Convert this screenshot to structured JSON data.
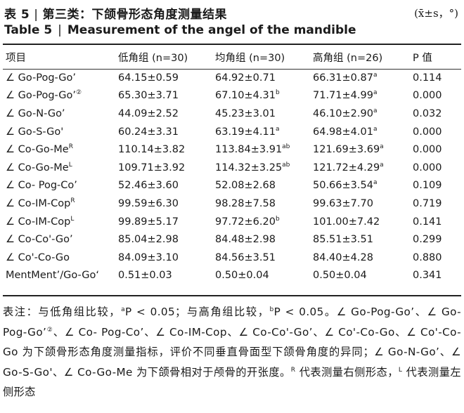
{
  "title": {
    "zh_label": "表 5",
    "zh_text": "第三类：下颌骨形态角度测量结果",
    "separator": "|",
    "unit": "(x̄±s，°)",
    "en_label": "Table 5",
    "en_text": "Measurement of the angel of the mandible"
  },
  "table": {
    "headers": [
      "项目",
      "低角组 (n=30)",
      "均角组 (n=30)",
      "高角组 (n=26)",
      "P 值"
    ],
    "rows": [
      {
        "item": "∠ Go-Pog-Go’",
        "sup": "",
        "low": "64.15±0.59",
        "low_sup": "",
        "mid": "64.92±0.71",
        "mid_sup": "",
        "high": "66.31±0.87",
        "high_sup": "a",
        "p": "0.114"
      },
      {
        "item": "∠ Go-Pog-Go’",
        "sup": "②",
        "low": "65.30±3.71",
        "low_sup": "",
        "mid": "67.10±4.31",
        "mid_sup": "b",
        "high": "71.71±4.99",
        "high_sup": "a",
        "p": "0.000"
      },
      {
        "item": "∠ Go-N-Go’",
        "sup": "",
        "low": "44.09±2.52",
        "low_sup": "",
        "mid": "45.23±3.01",
        "mid_sup": "",
        "high": "46.10±2.90",
        "high_sup": "a",
        "p": "0.032"
      },
      {
        "item": "∠ Go-S-Go'",
        "sup": "",
        "low": "60.24±3.31",
        "low_sup": "",
        "mid": "63.19±4.11",
        "mid_sup": "a",
        "high": "64.98±4.01",
        "high_sup": "a",
        "p": "0.000"
      },
      {
        "item": "∠ Co-Go-Me",
        "sup": "R",
        "low": "110.14±3.82",
        "low_sup": "",
        "mid": "113.84±3.91",
        "mid_sup": "ab",
        "high": "121.69±3.69",
        "high_sup": "a",
        "p": "0.000"
      },
      {
        "item": "∠ Co-Go-Me",
        "sup": "L",
        "low": "109.71±3.92",
        "low_sup": "",
        "mid": "114.32±3.25",
        "mid_sup": "ab",
        "high": "121.72±4.29",
        "high_sup": "a",
        "p": "0.000"
      },
      {
        "item": "∠ Co- Pog-Co’",
        "sup": "",
        "low": "52.46±3.60",
        "low_sup": "",
        "mid": "52.08±2.68",
        "mid_sup": "",
        "high": "50.66±3.54",
        "high_sup": "a",
        "p": "0.109"
      },
      {
        "item": "∠ Co-IM-Cop",
        "sup": "R",
        "low": "99.59±6.30",
        "low_sup": "",
        "mid": "98.28±7.58",
        "mid_sup": "",
        "high": "99.63±7.70",
        "high_sup": "",
        "p": "0.719"
      },
      {
        "item": "∠ Co-IM-Cop",
        "sup": "L",
        "low": "99.89±5.17",
        "low_sup": "",
        "mid": "97.72±6.20",
        "mid_sup": "b",
        "high": "101.00±7.42",
        "high_sup": "",
        "p": "0.141"
      },
      {
        "item": "∠ Co-Co'-Go’",
        "sup": "",
        "low": "85.04±2.98",
        "low_sup": "",
        "mid": "84.48±2.98",
        "mid_sup": "",
        "high": "85.51±3.51",
        "high_sup": "",
        "p": "0.299"
      },
      {
        "item": "∠ Co'-Co-Go",
        "sup": "",
        "low": "84.09±3.10",
        "low_sup": "",
        "mid": "84.56±3.51",
        "mid_sup": "",
        "high": "84.40±4.28",
        "high_sup": "",
        "p": "0.880"
      },
      {
        "item": "MentMent’/Go-Go‘",
        "sup": "",
        "low": "0.51±0.03",
        "low_sup": "",
        "mid": "0.50±0.04",
        "mid_sup": "",
        "high": "0.50±0.04",
        "high_sup": "",
        "p": "0.341"
      }
    ]
  },
  "note": {
    "p1": "表注：与低角组比较，",
    "sup_a": "a",
    "p2": "P < 0.05；与高角组比较，",
    "sup_b": "b",
    "p3": "P < 0.05。∠ Go-Pog-Go’、∠ Go-Pog-Go’",
    "sup_2": "②",
    "p4": "、∠ Co- Pog-Co’、∠ Co-IM-Cop、∠ Co-Co'-Go’、∠ Co'-Co-Go、∠ Co'-Co-Go 为下颌骨形态角度测量指标，评价不同垂直骨面型下颌骨角度的异同；∠ Go-N-Go’、∠ Go-S-Go'、∠ Co-Go-Me 为下颌骨相对于颅骨的开张度。",
    "sup_r": "R",
    "p5": " 代表测量右侧形态，",
    "sup_l": "L",
    "p6": " 代表测量左侧形态"
  }
}
